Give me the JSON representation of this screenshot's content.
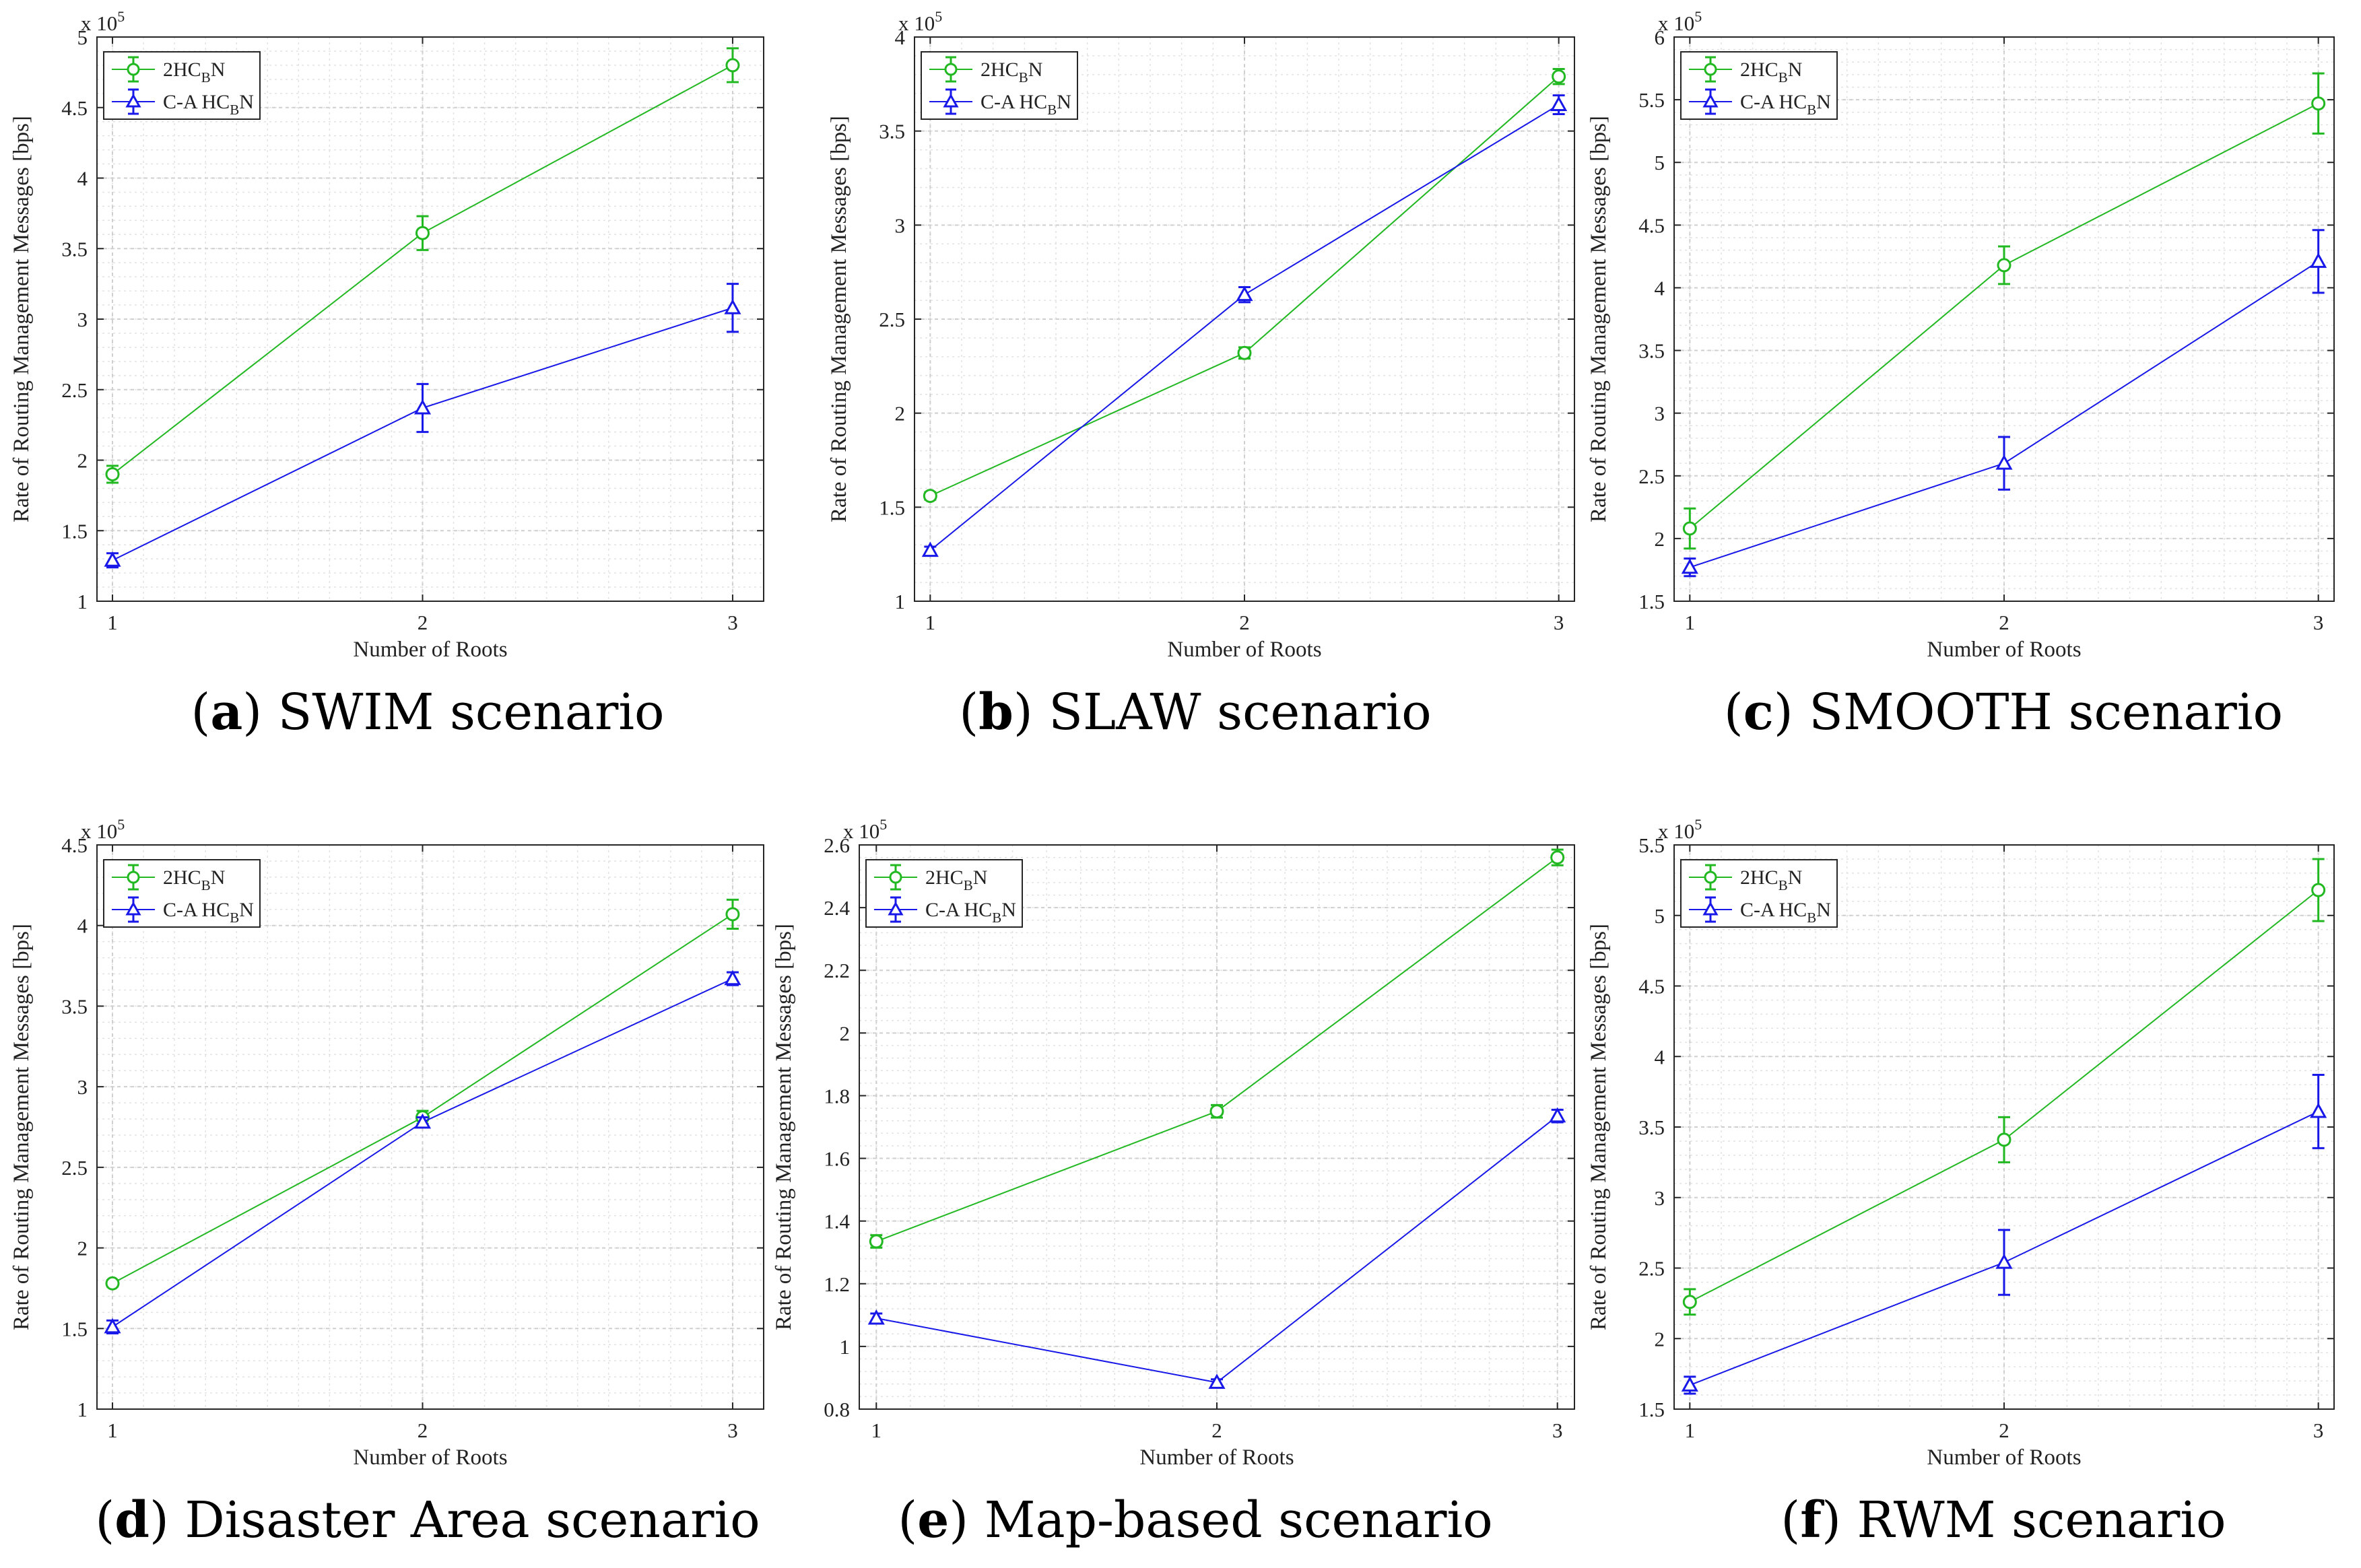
{
  "legend_colors": {
    "series_a": "#22b822",
    "series_b": "#1818e8"
  },
  "charts": [
    {
      "caption_letter": "a",
      "caption_text": "SWIM scenario",
      "chart_data": {
        "type": "line",
        "title": "",
        "xlabel": "Number of Roots",
        "ylabel": "Rate of Routing Management Messages [bps]",
        "exponent_label": "x 10",
        "exponent_power": "5",
        "x": [
          1,
          2,
          3
        ],
        "xlim": [
          0.95,
          3.1
        ],
        "ylim": [
          1,
          5
        ],
        "yticks": [
          1,
          1.5,
          2,
          2.5,
          3,
          3.5,
          4,
          4.5,
          5
        ],
        "ytick_labels": [
          "1",
          "1.5",
          "2",
          "2.5",
          "3",
          "3.5",
          "4",
          "4.5",
          "5"
        ],
        "legend_position": "top-left",
        "series": [
          {
            "name": "2HCBN",
            "legend_main": "2HC",
            "legend_sub": "B",
            "legend_tail": "N",
            "marker": "circle",
            "values": [
              1.9,
              3.61,
              4.8
            ],
            "err": [
              0.06,
              0.12,
              0.12
            ]
          },
          {
            "name": "C-A HCBN",
            "legend_main": "C-A HC",
            "legend_sub": "B",
            "legend_tail": "N",
            "marker": "triangle",
            "values": [
              1.29,
              2.37,
              3.08
            ],
            "err": [
              0.05,
              0.17,
              0.17
            ]
          }
        ]
      }
    },
    {
      "caption_letter": "b",
      "caption_text": "SLAW scenario",
      "chart_data": {
        "type": "line",
        "title": "",
        "xlabel": "Number of Roots",
        "ylabel": "Rate of Routing Management Messages [bps]",
        "exponent_label": "x 10",
        "exponent_power": "5",
        "x": [
          1,
          2,
          3
        ],
        "xlim": [
          0.95,
          3.05
        ],
        "ylim": [
          1,
          4
        ],
        "yticks": [
          1,
          1.5,
          2,
          2.5,
          3,
          3.5,
          4
        ],
        "ytick_labels": [
          "1",
          "1.5",
          "2",
          "2.5",
          "3",
          "3.5",
          "4"
        ],
        "legend_position": "top-left",
        "series": [
          {
            "name": "2HCBN",
            "legend_main": "2HC",
            "legend_sub": "B",
            "legend_tail": "N",
            "marker": "circle",
            "values": [
              1.56,
              2.32,
              3.79
            ],
            "err": [
              0.02,
              0.03,
              0.04
            ]
          },
          {
            "name": "C-A HCBN",
            "legend_main": "C-A HC",
            "legend_sub": "B",
            "legend_tail": "N",
            "marker": "triangle",
            "values": [
              1.27,
              2.63,
              3.64
            ],
            "err": [
              0.02,
              0.04,
              0.05
            ]
          }
        ]
      }
    },
    {
      "caption_letter": "c",
      "caption_text": "SMOOTH scenario",
      "chart_data": {
        "type": "line",
        "title": "",
        "xlabel": "Number of Roots",
        "ylabel": "Rate of Routing Management Messages [bps]",
        "exponent_label": "x 10",
        "exponent_power": "5",
        "x": [
          1,
          2,
          3
        ],
        "xlim": [
          0.95,
          3.05
        ],
        "ylim": [
          1.5,
          6
        ],
        "yticks": [
          1.5,
          2,
          2.5,
          3,
          3.5,
          4,
          4.5,
          5,
          5.5,
          6
        ],
        "ytick_labels": [
          "1.5",
          "2",
          "2.5",
          "3",
          "3.5",
          "4",
          "4.5",
          "5",
          "5.5",
          "6"
        ],
        "legend_position": "top-left",
        "series": [
          {
            "name": "2HCBN",
            "legend_main": "2HC",
            "legend_sub": "B",
            "legend_tail": "N",
            "marker": "circle",
            "values": [
              2.08,
              4.18,
              5.47
            ],
            "err": [
              0.16,
              0.15,
              0.24
            ]
          },
          {
            "name": "C-A HCBN",
            "legend_main": "C-A HC",
            "legend_sub": "B",
            "legend_tail": "N",
            "marker": "triangle",
            "values": [
              1.77,
              2.6,
              4.21
            ],
            "err": [
              0.07,
              0.21,
              0.25
            ]
          }
        ]
      }
    },
    {
      "caption_letter": "d",
      "caption_text": "Disaster Area scenario",
      "chart_data": {
        "type": "line",
        "title": "",
        "xlabel": "Number of Roots",
        "ylabel": "Rate of Routing Management Messages [bps]",
        "exponent_label": "x 10",
        "exponent_power": "5",
        "x": [
          1,
          2,
          3
        ],
        "xlim": [
          0.95,
          3.1
        ],
        "ylim": [
          1,
          4.5
        ],
        "yticks": [
          1,
          1.5,
          2,
          2.5,
          3,
          3.5,
          4,
          4.5
        ],
        "ytick_labels": [
          "1",
          "1.5",
          "2",
          "2.5",
          "3",
          "3.5",
          "4",
          "4.5"
        ],
        "legend_position": "top-left",
        "series": [
          {
            "name": "2HCBN",
            "legend_main": "2HC",
            "legend_sub": "B",
            "legend_tail": "N",
            "marker": "circle",
            "values": [
              1.78,
              2.81,
              4.07
            ],
            "err": [
              0.02,
              0.04,
              0.09
            ]
          },
          {
            "name": "C-A HCBN",
            "legend_main": "C-A HC",
            "legend_sub": "B",
            "legend_tail": "N",
            "marker": "triangle",
            "values": [
              1.51,
              2.78,
              3.67
            ],
            "err": [
              0.04,
              0.03,
              0.04
            ]
          }
        ]
      }
    },
    {
      "caption_letter": "e",
      "caption_text": "Map-based scenario",
      "chart_data": {
        "type": "line",
        "title": "",
        "xlabel": "Number of Roots",
        "ylabel": "Rate of Routing Management Messages [bps]",
        "exponent_label": "x 10",
        "exponent_power": "5",
        "x": [
          1,
          2,
          3
        ],
        "xlim": [
          0.95,
          3.05
        ],
        "ylim": [
          0.8,
          2.6
        ],
        "yticks": [
          0.8,
          1,
          1.2,
          1.4,
          1.6,
          1.8,
          2,
          2.2,
          2.4,
          2.6
        ],
        "ytick_labels": [
          "0.8",
          "1",
          "1.2",
          "1.4",
          "1.6",
          "1.8",
          "2",
          "2.2",
          "2.4",
          "2.6"
        ],
        "legend_position": "top-left",
        "series": [
          {
            "name": "2HCBN",
            "legend_main": "2HC",
            "legend_sub": "B",
            "legend_tail": "N",
            "marker": "circle",
            "values": [
              1.335,
              1.75,
              2.56
            ],
            "err": [
              0.02,
              0.02,
              0.025
            ]
          },
          {
            "name": "C-A HCBN",
            "legend_main": "C-A HC",
            "legend_sub": "B",
            "legend_tail": "N",
            "marker": "triangle",
            "values": [
              1.09,
              0.885,
              1.735
            ],
            "err": [
              0.015,
              0.01,
              0.02
            ]
          }
        ]
      }
    },
    {
      "caption_letter": "f",
      "caption_text": "RWM scenario",
      "chart_data": {
        "type": "line",
        "title": "",
        "xlabel": "Number of Roots",
        "ylabel": "Rate of Routing Management Messages [bps]",
        "exponent_label": "x 10",
        "exponent_power": "5",
        "x": [
          1,
          2,
          3
        ],
        "xlim": [
          0.95,
          3.05
        ],
        "ylim": [
          1.5,
          5.5
        ],
        "yticks": [
          1.5,
          2,
          2.5,
          3,
          3.5,
          4,
          4.5,
          5,
          5.5
        ],
        "ytick_labels": [
          "1.5",
          "2",
          "2.5",
          "3",
          "3.5",
          "4",
          "4.5",
          "5",
          "5.5"
        ],
        "legend_position": "top-left",
        "series": [
          {
            "name": "2HCBN",
            "legend_main": "2HC",
            "legend_sub": "B",
            "legend_tail": "N",
            "marker": "circle",
            "values": [
              2.26,
              3.41,
              5.18
            ],
            "err": [
              0.09,
              0.16,
              0.22
            ]
          },
          {
            "name": "C-A HCBN",
            "legend_main": "C-A HC",
            "legend_sub": "B",
            "legend_tail": "N",
            "marker": "triangle",
            "values": [
              1.67,
              2.54,
              3.61
            ],
            "err": [
              0.06,
              0.23,
              0.26
            ]
          }
        ]
      }
    }
  ]
}
